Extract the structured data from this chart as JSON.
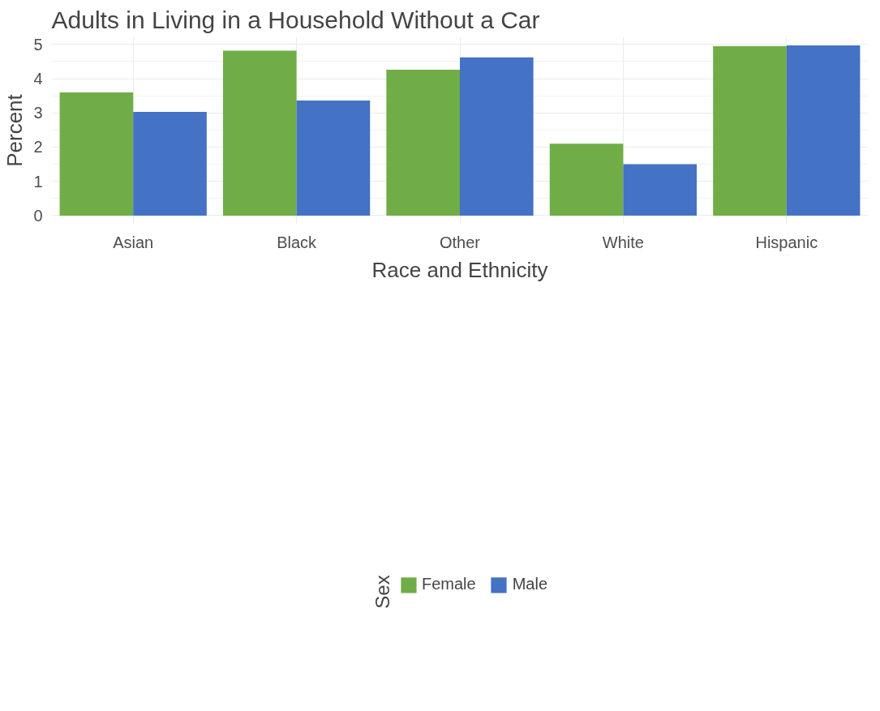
{
  "chart_data": {
    "type": "bar",
    "title": "Adults in Living in a Household Without a Car",
    "xlabel": "Race and Ethnicity",
    "ylabel": "Percent",
    "legend_title": "Sex",
    "categories": [
      "Asian",
      "Black",
      "Other",
      "White",
      "Hispanic"
    ],
    "series": [
      {
        "name": "Female",
        "color": "#70ad47",
        "values": [
          3.6,
          4.82,
          4.26,
          2.1,
          4.95
        ]
      },
      {
        "name": "Male",
        "color": "#4472c4",
        "values": [
          3.03,
          3.36,
          4.62,
          1.5,
          4.97
        ]
      }
    ],
    "ylim": [
      -0.25,
      5.22
    ],
    "yticks": [
      0,
      1,
      2,
      3,
      4,
      5
    ],
    "grid": true,
    "legend": "bottom"
  }
}
